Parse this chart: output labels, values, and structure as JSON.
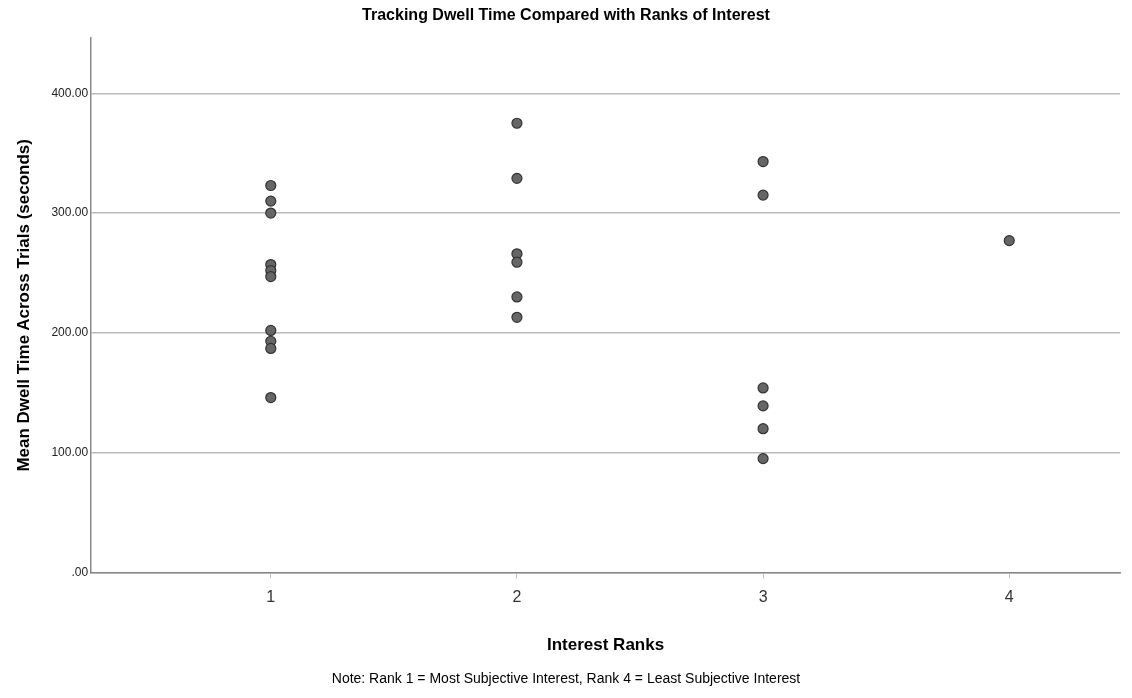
{
  "chart_data": {
    "type": "scatter",
    "title": "Tracking Dwell Time Compared with Ranks of Interest",
    "xlabel": "Interest Ranks",
    "ylabel": "Mean Dwell Time Across Trials (seconds)",
    "annotations": [
      "Note: Rank 1 = Most Subjective Interest, Rank 4 = Least Subjective Interest"
    ],
    "series": [
      {
        "color": "#666666",
        "x": [
          1,
          1,
          1,
          1,
          1,
          1,
          1,
          1,
          1,
          1,
          2,
          2,
          2,
          2,
          2,
          2,
          3,
          3,
          3,
          3,
          3,
          3,
          4
        ],
        "values": [
          323,
          310,
          300,
          257,
          252,
          247,
          202,
          193,
          187,
          146,
          375,
          329,
          266,
          259,
          230,
          213,
          343,
          315,
          154,
          139,
          120,
          95,
          277
        ]
      }
    ],
    "xlim": [
      0.27,
      4.45
    ],
    "xticks": [
      1,
      2,
      3,
      4
    ],
    "ylim": [
      0,
      446
    ],
    "yticks": [
      {
        "value": 0,
        "label": ".00"
      },
      {
        "value": 100,
        "label": "100.00"
      },
      {
        "value": 200,
        "label": "200.00"
      },
      {
        "value": 300,
        "label": "300.00"
      },
      {
        "value": 400,
        "label": "400.00"
      }
    ],
    "grid": "y",
    "marker": "circle"
  }
}
